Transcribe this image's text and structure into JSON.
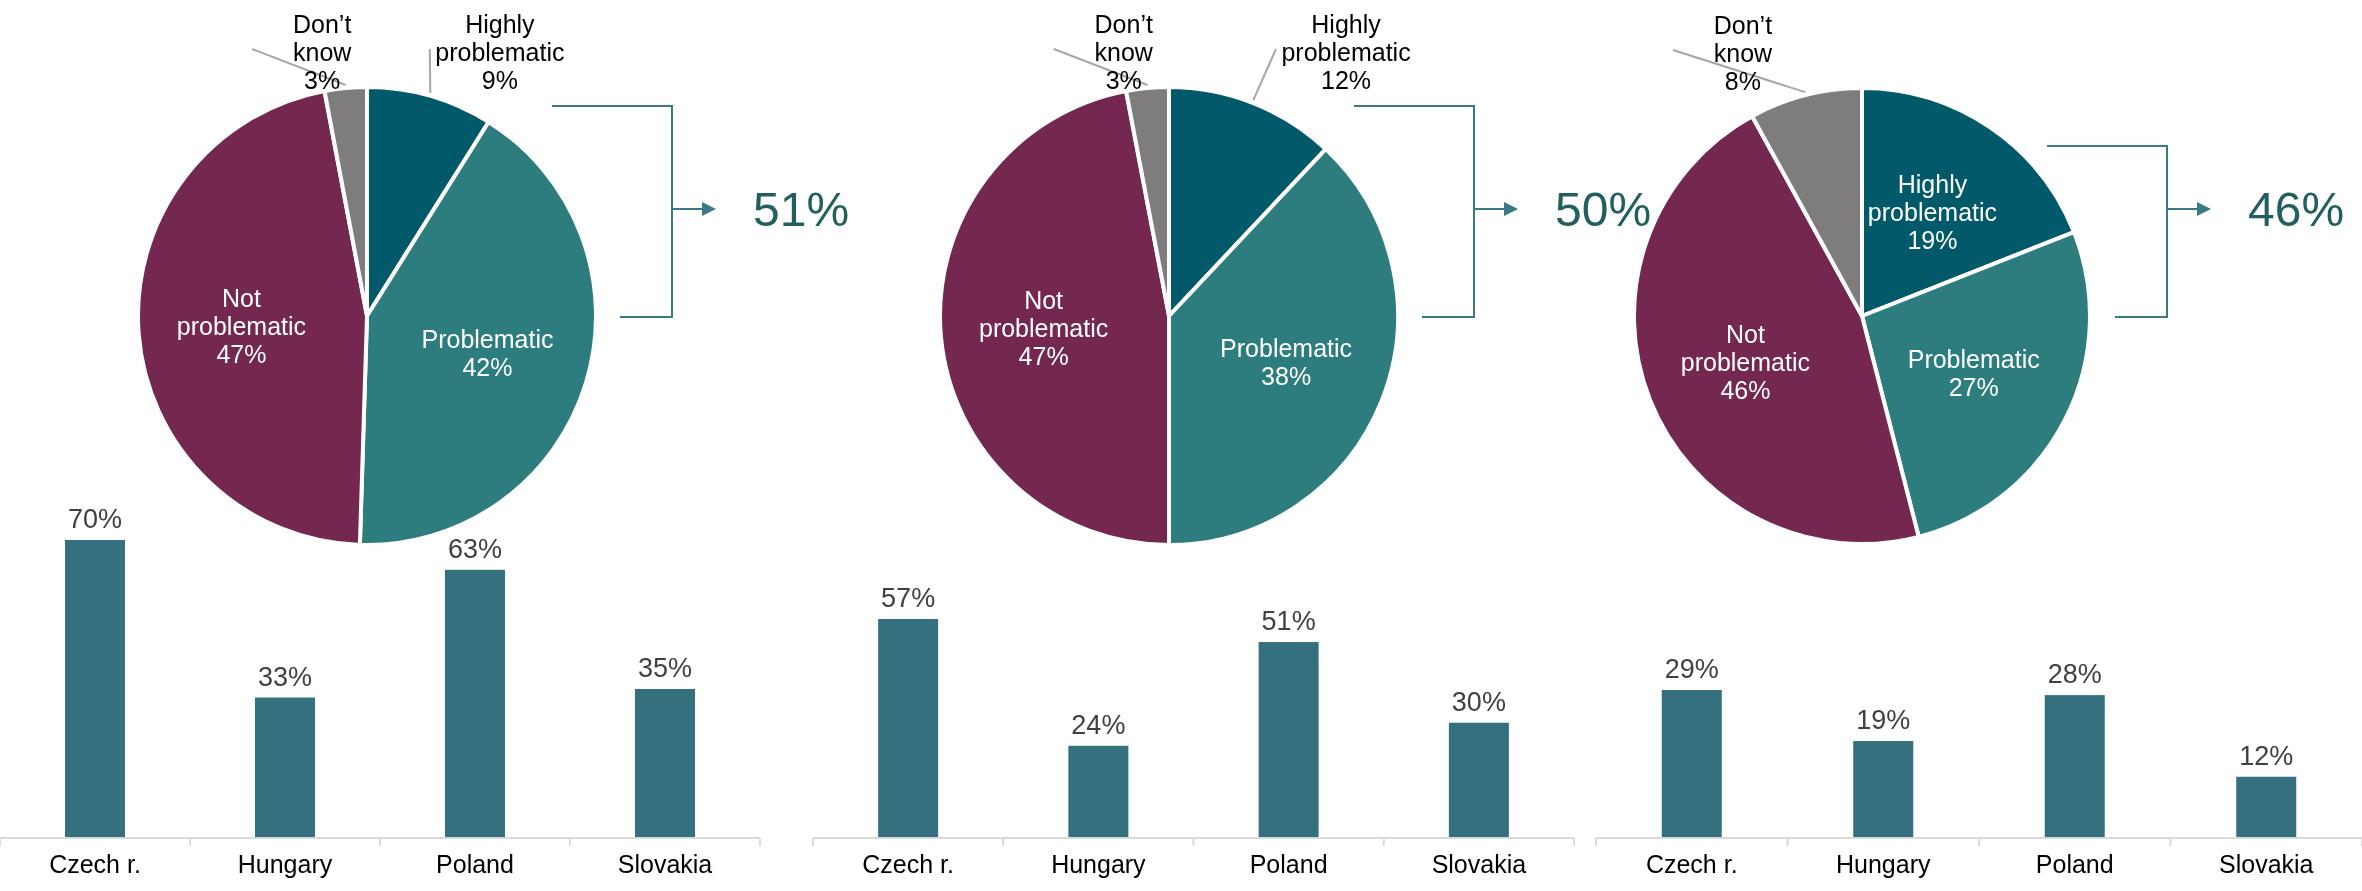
{
  "chart_data": [
    {
      "type": "pie",
      "categories": [
        "Highly problematic",
        "Problematic",
        "Not problematic",
        "Don’t know"
      ],
      "values": [
        9,
        42,
        47,
        3
      ],
      "value_labels": [
        "9%",
        "42%",
        "47%",
        "3%"
      ],
      "colors": [
        "#02596a",
        "#2e7d7e",
        "#74274f",
        "#7f7c7d"
      ],
      "annotations": [
        "51%"
      ]
    },
    {
      "type": "pie",
      "categories": [
        "Highly problematic",
        "Problematic",
        "Not problematic",
        "Don’t know"
      ],
      "values": [
        12,
        38,
        47,
        3
      ],
      "value_labels": [
        "12%",
        "38%",
        "47%",
        "3%"
      ],
      "colors": [
        "#02596a",
        "#2e7d7e",
        "#74274f",
        "#7f7c7d"
      ],
      "annotations": [
        "50%"
      ]
    },
    {
      "type": "pie",
      "categories": [
        "Highly problematic",
        "Problematic",
        "Not problematic",
        "Don’t know"
      ],
      "values": [
        19,
        27,
        46,
        8
      ],
      "value_labels": [
        "19%",
        "27%",
        "46%",
        "8%"
      ],
      "colors": [
        "#02596a",
        "#2e7d7e",
        "#74274f",
        "#7f7c7d"
      ],
      "annotations": [
        "46%"
      ]
    },
    {
      "type": "bar",
      "categories": [
        "Czech r.",
        "Hungary",
        "Poland",
        "Slovakia"
      ],
      "values": [
        70,
        33,
        63,
        35
      ],
      "value_labels": [
        "70%",
        "33%",
        "63%",
        "35%"
      ],
      "color": "#35707e"
    },
    {
      "type": "bar",
      "categories": [
        "Czech r.",
        "Hungary",
        "Poland",
        "Slovakia"
      ],
      "values": [
        57,
        24,
        51,
        30
      ],
      "value_labels": [
        "57%",
        "24%",
        "51%",
        "30%"
      ],
      "color": "#35707e"
    },
    {
      "type": "bar",
      "categories": [
        "Czech r.",
        "Hungary",
        "Poland",
        "Slovakia"
      ],
      "values": [
        29,
        19,
        28,
        12
      ],
      "value_labels": [
        "29%",
        "19%",
        "28%",
        "12%"
      ],
      "color": "#35707e"
    }
  ]
}
